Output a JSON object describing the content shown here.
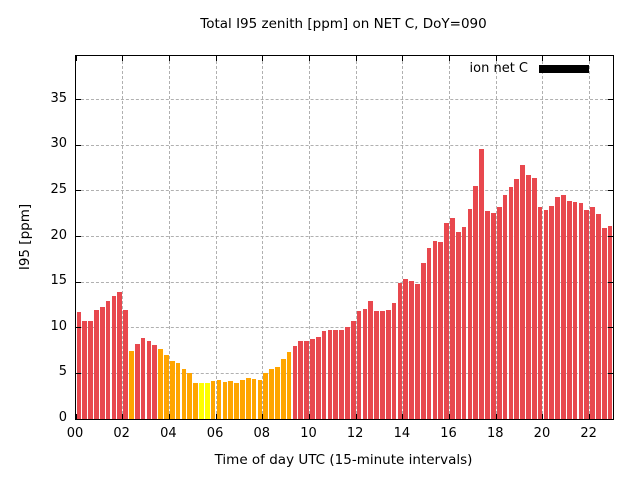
{
  "chart_data": {
    "type": "bar",
    "title": "Total I95 zenith [ppm] on NET C, DoY=090",
    "xlabel": "Time of day UTC (15-minute intervals)",
    "ylabel": "I95 [ppm]",
    "ylim": [
      0,
      39.8
    ],
    "xlim_hours": [
      0,
      23
    ],
    "yticks": [
      0,
      5,
      10,
      15,
      20,
      25,
      30,
      35
    ],
    "xticks": [
      "00",
      "02",
      "04",
      "06",
      "08",
      "10",
      "12",
      "14",
      "16",
      "18",
      "20",
      "22"
    ],
    "grid": true,
    "interval_minutes": 15,
    "legend": {
      "label": "ion net C",
      "swatch_color": "#000000",
      "position": "top-right-inside"
    },
    "palette": {
      "r": "#e8484e",
      "o": "#ffa500",
      "y": "#ffff00"
    },
    "categories": [
      "00:00",
      "00:15",
      "00:30",
      "00:45",
      "01:00",
      "01:15",
      "01:30",
      "01:45",
      "02:00",
      "02:15",
      "02:30",
      "02:45",
      "03:00",
      "03:15",
      "03:30",
      "03:45",
      "04:00",
      "04:15",
      "04:30",
      "04:45",
      "05:00",
      "05:15",
      "05:30",
      "05:45",
      "06:00",
      "06:15",
      "06:30",
      "06:45",
      "07:00",
      "07:15",
      "07:30",
      "07:45",
      "08:00",
      "08:15",
      "08:30",
      "08:45",
      "09:00",
      "09:15",
      "09:30",
      "09:45",
      "10:00",
      "10:15",
      "10:30",
      "10:45",
      "11:00",
      "11:15",
      "11:30",
      "11:45",
      "12:00",
      "12:15",
      "12:30",
      "12:45",
      "13:00",
      "13:15",
      "13:30",
      "13:45",
      "14:00",
      "14:15",
      "14:30",
      "14:45",
      "15:00",
      "15:15",
      "15:30",
      "15:45",
      "16:00",
      "16:15",
      "16:30",
      "16:45",
      "17:00",
      "17:15",
      "17:30",
      "17:45",
      "18:00",
      "18:15",
      "18:30",
      "18:45",
      "19:00",
      "19:15",
      "19:30",
      "19:45",
      "20:00",
      "20:15",
      "20:30",
      "20:45",
      "21:00",
      "21:15",
      "21:30",
      "21:45",
      "22:00",
      "22:15",
      "22:30",
      "22:45"
    ],
    "values": [
      11.7,
      10.8,
      10.8,
      12.0,
      12.3,
      12.9,
      13.5,
      13.9,
      12.0,
      7.5,
      8.2,
      8.9,
      8.6,
      8.1,
      7.7,
      7.0,
      6.4,
      6.1,
      5.5,
      5.0,
      4.0,
      3.9,
      3.9,
      4.2,
      4.3,
      4.1,
      4.2,
      3.9,
      4.3,
      4.5,
      4.4,
      4.3,
      5.0,
      5.5,
      5.7,
      6.6,
      7.4,
      8.0,
      8.5,
      8.6,
      8.8,
      9.0,
      9.7,
      9.8,
      9.8,
      9.8,
      10.1,
      10.8,
      11.8,
      12.1,
      12.9,
      11.8,
      11.8,
      11.9,
      12.7,
      14.9,
      15.4,
      15.1,
      14.8,
      17.1,
      18.7,
      19.5,
      19.4,
      21.5,
      22.0,
      20.5,
      21.0,
      23.0,
      25.6,
      29.6,
      22.8,
      22.6,
      23.3,
      24.6,
      25.4,
      26.3,
      27.9,
      26.7,
      26.4,
      23.2,
      22.9,
      23.4,
      24.3,
      24.6,
      23.9,
      23.8,
      23.7,
      22.9,
      23.2,
      22.5,
      20.9,
      21.2
    ],
    "bar_colors": [
      "r",
      "r",
      "r",
      "r",
      "r",
      "r",
      "r",
      "r",
      "r",
      "o",
      "r",
      "r",
      "r",
      "r",
      "o",
      "o",
      "o",
      "o",
      "o",
      "o",
      "o",
      "y",
      "y",
      "o",
      "o",
      "o",
      "o",
      "o",
      "o",
      "o",
      "o",
      "o",
      "o",
      "o",
      "o",
      "o",
      "o",
      "r",
      "r",
      "r",
      "r",
      "r",
      "r",
      "r",
      "r",
      "r",
      "r",
      "r",
      "r",
      "r",
      "r",
      "r",
      "r",
      "r",
      "r",
      "r",
      "r",
      "r",
      "r",
      "r",
      "r",
      "r",
      "r",
      "r",
      "r",
      "r",
      "r",
      "r",
      "r",
      "r",
      "r",
      "r",
      "r",
      "r",
      "r",
      "r",
      "r",
      "r",
      "r",
      "r",
      "r",
      "r",
      "r",
      "r",
      "r",
      "r",
      "r",
      "r",
      "r",
      "r",
      "r",
      "r"
    ]
  }
}
